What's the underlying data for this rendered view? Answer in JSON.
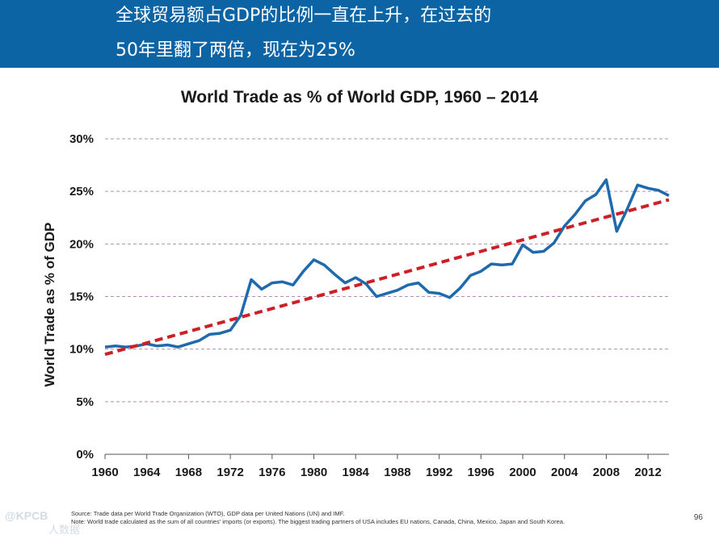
{
  "header": {
    "line1": "全球贸易额占GDP的比例一直在上升，在过去的",
    "line2": "50年里翻了两倍，现在为25%"
  },
  "chart_data": {
    "type": "line",
    "title": "World Trade as % of World GDP, 1960 – 2014",
    "ylabel": "World Trade as % of GDP",
    "xlabel": "",
    "xlim": [
      1960,
      2014
    ],
    "ylim": [
      0,
      30
    ],
    "xticks": [
      "1960",
      "1964",
      "1968",
      "1972",
      "1976",
      "1980",
      "1984",
      "1988",
      "1992",
      "1996",
      "2000",
      "2004",
      "2008",
      "2012"
    ],
    "yticks": [
      "0%",
      "5%",
      "10%",
      "15%",
      "20%",
      "25%",
      "30%"
    ],
    "grid": "horizontal dashed",
    "series": [
      {
        "name": "World Trade as % of GDP",
        "color": "#1f6aad",
        "x": [
          1960,
          1961,
          1962,
          1963,
          1964,
          1965,
          1966,
          1967,
          1968,
          1969,
          1970,
          1971,
          1972,
          1973,
          1974,
          1975,
          1976,
          1977,
          1978,
          1979,
          1980,
          1981,
          1982,
          1983,
          1984,
          1985,
          1986,
          1987,
          1988,
          1989,
          1990,
          1991,
          1992,
          1993,
          1994,
          1995,
          1996,
          1997,
          1998,
          1999,
          2000,
          2001,
          2002,
          2003,
          2004,
          2005,
          2006,
          2007,
          2008,
          2009,
          2010,
          2011,
          2012,
          2013,
          2014
        ],
        "values": [
          10.2,
          10.3,
          10.2,
          10.3,
          10.5,
          10.3,
          10.4,
          10.2,
          10.5,
          10.8,
          11.4,
          11.5,
          11.8,
          13.2,
          16.6,
          15.7,
          16.3,
          16.4,
          16.1,
          17.4,
          18.5,
          18.0,
          17.1,
          16.3,
          16.8,
          16.2,
          15.0,
          15.3,
          15.6,
          16.1,
          16.3,
          15.4,
          15.3,
          14.9,
          15.8,
          17.0,
          17.4,
          18.1,
          18.0,
          18.1,
          19.9,
          19.2,
          19.3,
          20.1,
          21.7,
          22.8,
          24.1,
          24.7,
          26.1,
          21.2,
          23.3,
          25.6,
          25.3,
          25.1,
          24.6
        ]
      },
      {
        "name": "Trend",
        "color": "#cc2027",
        "style": "dashed",
        "x": [
          1960,
          2014
        ],
        "values": [
          9.5,
          24.2
        ]
      }
    ]
  },
  "footer": {
    "source": "Source: Trade data per World Trade Organization (WTO), GDP data per United Nations (UN) and IMF.",
    "note": "Note: World trade calculated as the sum of all countries' imports (or exports). The biggest trading partners of USA includes EU nations, Canada, China, Mexico, Japan and South Korea."
  },
  "page_number": "96",
  "watermark": "@KPCB",
  "watermark_sub": "人数据"
}
